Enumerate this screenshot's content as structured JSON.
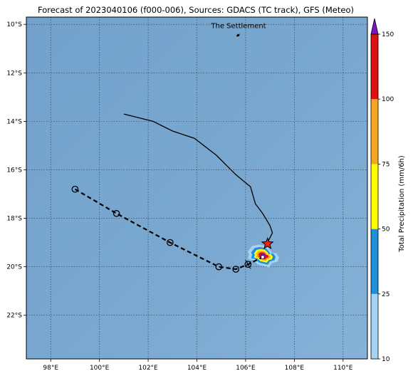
{
  "title": "Forecast of 2023040106 (f000-006), Sources: GDACS (TC track), GFS (Meteo)",
  "map": {
    "lon_range": [
      97,
      111
    ],
    "lat_range": [
      -23.8,
      -9.7
    ],
    "x_ticks": [
      {
        "value": 98,
        "label": "98°E"
      },
      {
        "value": 100,
        "label": "100°E"
      },
      {
        "value": 102,
        "label": "102°E"
      },
      {
        "value": 104,
        "label": "104°E"
      },
      {
        "value": 106,
        "label": "106°E"
      },
      {
        "value": 108,
        "label": "108°E"
      },
      {
        "value": 110,
        "label": "110°E"
      }
    ],
    "y_ticks": [
      {
        "value": -10,
        "label": "10°S"
      },
      {
        "value": -12,
        "label": "12°S"
      },
      {
        "value": -14,
        "label": "14°S"
      },
      {
        "value": -16,
        "label": "16°S"
      },
      {
        "value": -18,
        "label": "18°S"
      },
      {
        "value": -20,
        "label": "20°S"
      },
      {
        "value": -22,
        "label": "22°S"
      }
    ],
    "gridlines": "dotted",
    "ocean_color": "#7aa7cf",
    "places": [
      {
        "name": "The Settlement",
        "lon": 105.68,
        "lat": -10.42
      }
    ]
  },
  "tracks": {
    "observed": {
      "color": "#000000",
      "points": [
        [
          101.0,
          -13.7
        ],
        [
          102.2,
          -14.0
        ],
        [
          103.0,
          -14.4
        ],
        [
          103.9,
          -14.7
        ],
        [
          104.8,
          -15.4
        ],
        [
          105.6,
          -16.2
        ],
        [
          106.2,
          -16.7
        ],
        [
          106.4,
          -17.4
        ],
        [
          106.7,
          -17.8
        ],
        [
          107.0,
          -18.3
        ],
        [
          107.1,
          -18.6
        ],
        [
          106.9,
          -19.0
        ]
      ]
    },
    "forecast": {
      "color": "#000000",
      "style": "dashed",
      "points": [
        [
          99.0,
          -16.8
        ],
        [
          100.7,
          -17.8
        ],
        [
          102.9,
          -19.0
        ],
        [
          104.9,
          -20.0
        ],
        [
          105.6,
          -20.1
        ],
        [
          106.1,
          -19.9
        ],
        [
          106.7,
          -19.6
        ]
      ],
      "markers": [
        [
          99.0,
          -16.8
        ],
        [
          100.7,
          -17.8
        ],
        [
          102.9,
          -19.0
        ],
        [
          104.9,
          -20.0
        ],
        [
          105.6,
          -20.1
        ],
        [
          106.1,
          -19.9
        ]
      ]
    },
    "current_position": {
      "lon": 106.9,
      "lat": -19.05,
      "marker": "star",
      "color": "#e8281e"
    }
  },
  "precip": {
    "center": {
      "lon": 106.7,
      "lat": -19.55
    },
    "bands": [
      {
        "threshold": 10,
        "color": "#a6d2f4"
      },
      {
        "threshold": 25,
        "color": "#1e90d8"
      },
      {
        "threshold": 50,
        "color": "#ffff00"
      },
      {
        "threshold": 75,
        "color": "#f5a623"
      },
      {
        "threshold": 100,
        "color": "#e01010"
      },
      {
        "threshold": 150,
        "color": "#7b14c8"
      }
    ]
  },
  "colorbar": {
    "label": "Total Precipitation (mm/6h)",
    "ticks": [
      10,
      25,
      50,
      75,
      100,
      150
    ],
    "colors": [
      "#a6d2f4",
      "#1e90d8",
      "#ffff00",
      "#f5a623",
      "#e01010",
      "#7b14c8"
    ]
  }
}
